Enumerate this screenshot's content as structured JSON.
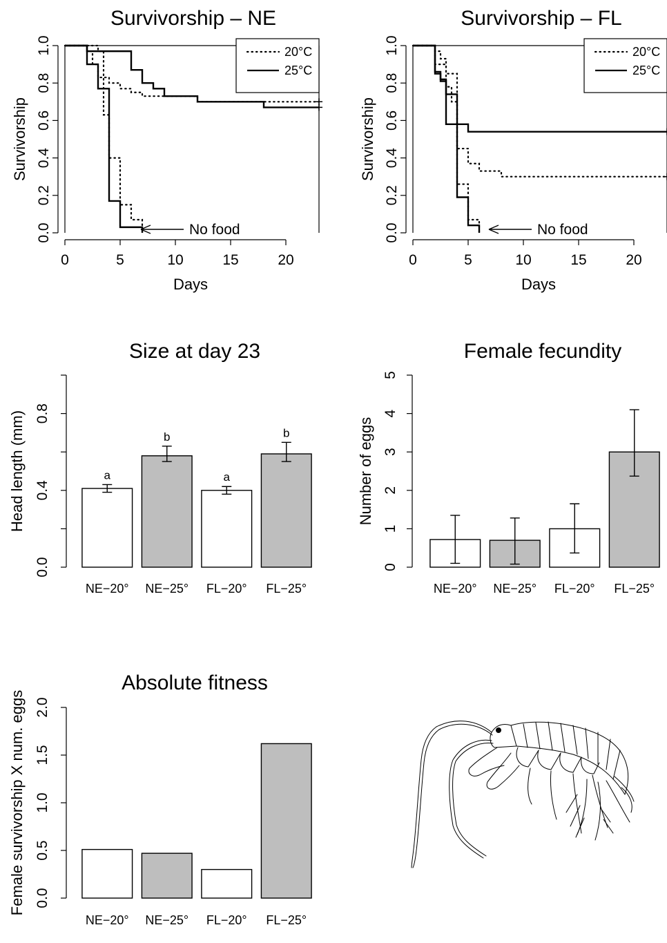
{
  "chart_data": [
    {
      "type": "line",
      "title": "Survivorship – NE",
      "xlabel": "Days",
      "ylabel": "Survivorship",
      "xlim": [
        0,
        23
      ],
      "ylim": [
        0,
        1
      ],
      "xticks": [
        "0",
        "5",
        "10",
        "15",
        "20"
      ],
      "yticks": [
        "0.0",
        "0.2",
        "0.4",
        "0.6",
        "0.8",
        "1.0"
      ],
      "legend": {
        "position": "top-right",
        "entries": [
          "20°C",
          "25°C"
        ]
      },
      "annotation": "No food",
      "series": [
        {
          "name": "20°C",
          "style": "dotted",
          "x": [
            0,
            2,
            2.5,
            3,
            4,
            5,
            6,
            7,
            9,
            12,
            23
          ],
          "y": [
            1.0,
            0.97,
            0.9,
            0.83,
            0.8,
            0.77,
            0.75,
            0.73,
            0.73,
            0.7,
            0.7
          ],
          "censored_end": true
        },
        {
          "name": "25°C",
          "style": "solid",
          "x": [
            0,
            2,
            6,
            7,
            8,
            9,
            12,
            18,
            23
          ],
          "y": [
            1.0,
            0.97,
            0.87,
            0.8,
            0.77,
            0.73,
            0.7,
            0.67,
            0.67
          ],
          "censored_end": true
        },
        {
          "name": "No food 20°C",
          "style": "dotted",
          "x": [
            0,
            3,
            3.5,
            4,
            5,
            6,
            7
          ],
          "y": [
            1.0,
            0.97,
            0.63,
            0.4,
            0.15,
            0.07,
            0.0
          ]
        },
        {
          "name": "No food 25°C",
          "style": "solid",
          "x": [
            0,
            2,
            3,
            4,
            5,
            7
          ],
          "y": [
            1.0,
            0.9,
            0.77,
            0.17,
            0.03,
            0.0
          ]
        }
      ]
    },
    {
      "type": "line",
      "title": "Survivorship – FL",
      "xlabel": "Days",
      "ylabel": "Survivorship",
      "xlim": [
        0,
        23
      ],
      "ylim": [
        0,
        1
      ],
      "xticks": [
        "0",
        "5",
        "10",
        "15",
        "20"
      ],
      "yticks": [
        "0.0",
        "0.2",
        "0.4",
        "0.6",
        "0.8",
        "1.0"
      ],
      "legend": {
        "position": "top-right",
        "entries": [
          "20°C",
          "25°C"
        ]
      },
      "annotation": "No food",
      "series": [
        {
          "name": "20°C",
          "style": "dotted",
          "x": [
            0,
            2,
            2.5,
            3,
            4,
            5,
            6,
            8,
            23
          ],
          "y": [
            1.0,
            0.97,
            0.93,
            0.85,
            0.45,
            0.37,
            0.33,
            0.3,
            0.3
          ],
          "censored_end": true
        },
        {
          "name": "25°C",
          "style": "solid",
          "x": [
            0,
            2,
            2.5,
            3,
            4,
            5,
            23
          ],
          "y": [
            1.0,
            0.85,
            0.81,
            0.58,
            0.58,
            0.54,
            0.54
          ],
          "censored_end": true
        },
        {
          "name": "No food 20°C",
          "style": "dotted",
          "x": [
            0,
            2,
            3,
            3.5,
            4,
            5,
            6
          ],
          "y": [
            1.0,
            0.9,
            0.78,
            0.7,
            0.26,
            0.07,
            0.0
          ]
        },
        {
          "name": "No food 25°C",
          "style": "solid",
          "x": [
            0,
            2,
            2.5,
            3,
            4,
            5,
            6
          ],
          "y": [
            1.0,
            0.86,
            0.82,
            0.74,
            0.19,
            0.04,
            0.0
          ]
        }
      ]
    },
    {
      "type": "bar",
      "title": "Size at day 23",
      "xlabel": "",
      "ylabel": "Head length (mm)",
      "ylim": [
        0,
        1.0
      ],
      "yticks": [
        "0.0",
        "0.4",
        "0.8"
      ],
      "categories": [
        "NE−20°",
        "NE−25°",
        "FL−20°",
        "FL−25°"
      ],
      "values": [
        0.41,
        0.58,
        0.4,
        0.59
      ],
      "err_low": [
        0.39,
        0.55,
        0.38,
        0.55
      ],
      "err_high": [
        0.43,
        0.63,
        0.42,
        0.65
      ],
      "letters": [
        "a",
        "b",
        "a",
        "b"
      ],
      "fills": [
        "#ffffff",
        "#bebebe",
        "#ffffff",
        "#bebebe"
      ]
    },
    {
      "type": "bar",
      "title": "Female fecundity",
      "xlabel": "",
      "ylabel": "Number of eggs",
      "ylim": [
        0,
        5
      ],
      "yticks": [
        "0",
        "1",
        "2",
        "3",
        "4",
        "5"
      ],
      "categories": [
        "NE−20°",
        "NE−25°",
        "FL−20°",
        "FL−25°"
      ],
      "values": [
        0.72,
        0.7,
        1.0,
        3.0
      ],
      "err_low": [
        0.1,
        0.08,
        0.37,
        2.37
      ],
      "err_high": [
        1.35,
        1.28,
        1.65,
        4.1
      ],
      "fills": [
        "#ffffff",
        "#bebebe",
        "#ffffff",
        "#bebebe"
      ]
    },
    {
      "type": "bar",
      "title": "Absolute fitness",
      "xlabel": "",
      "ylabel": "Female survivorship X num. eggs",
      "ylim": [
        0,
        2.0
      ],
      "yticks": [
        "0.0",
        "0.5",
        "1.0",
        "1.5",
        "2.0"
      ],
      "categories": [
        "NE−20°",
        "NE−25°",
        "FL−20°",
        "FL−25°"
      ],
      "values": [
        0.51,
        0.47,
        0.3,
        1.62
      ],
      "fills": [
        "#ffffff",
        "#bebebe",
        "#ffffff",
        "#bebebe"
      ]
    }
  ],
  "illustration": {
    "icon": "amphipod-drawing"
  }
}
